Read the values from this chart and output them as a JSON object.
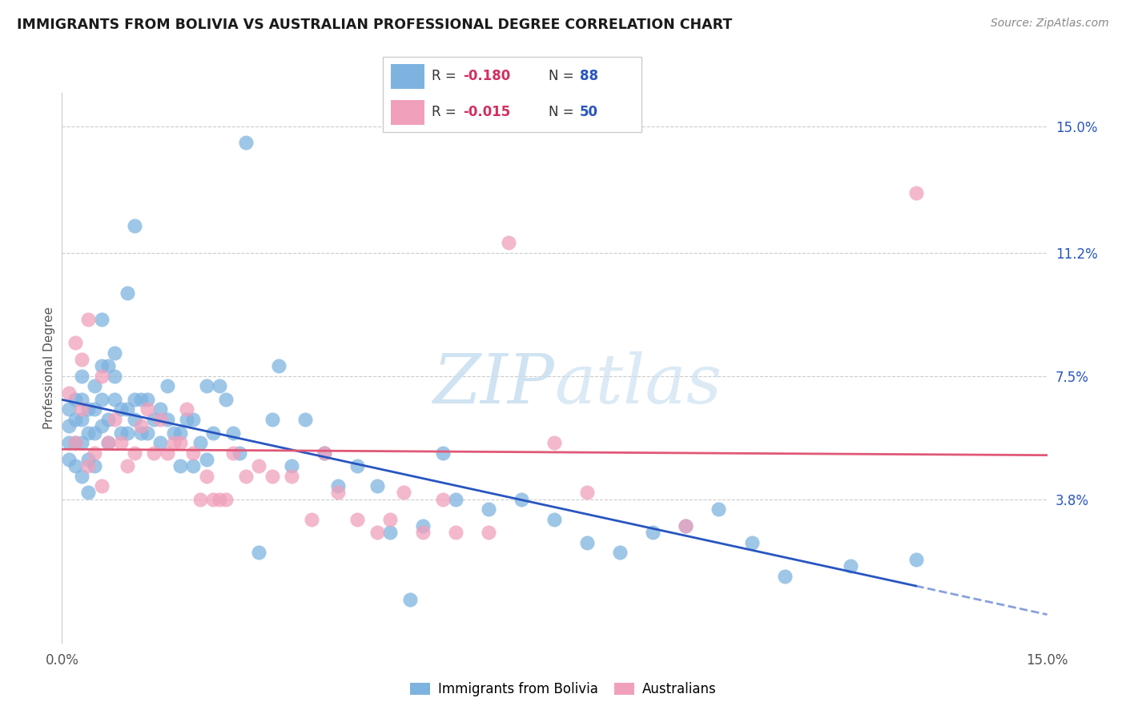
{
  "title": "IMMIGRANTS FROM BOLIVIA VS AUSTRALIAN PROFESSIONAL DEGREE CORRELATION CHART",
  "source": "Source: ZipAtlas.com",
  "ylabel": "Professional Degree",
  "right_yticks": [
    "15.0%",
    "11.2%",
    "7.5%",
    "3.8%"
  ],
  "right_ytick_vals": [
    0.15,
    0.112,
    0.075,
    0.038
  ],
  "xlim": [
    0.0,
    0.15
  ],
  "ylim": [
    -0.005,
    0.16
  ],
  "legend_label1": "Immigrants from Bolivia",
  "legend_label2": "Australians",
  "color_blue": "#7EB3E0",
  "color_pink": "#F0A0BB",
  "line_color_blue": "#2855C0",
  "line_color_pink": "#E05878",
  "watermark": "ZIPatlas",
  "bolivia_x": [
    0.001,
    0.001,
    0.001,
    0.001,
    0.002,
    0.002,
    0.002,
    0.002,
    0.003,
    0.003,
    0.003,
    0.003,
    0.003,
    0.004,
    0.004,
    0.004,
    0.004,
    0.005,
    0.005,
    0.005,
    0.005,
    0.006,
    0.006,
    0.006,
    0.006,
    0.007,
    0.007,
    0.007,
    0.008,
    0.008,
    0.008,
    0.009,
    0.009,
    0.01,
    0.01,
    0.01,
    0.011,
    0.011,
    0.011,
    0.012,
    0.012,
    0.013,
    0.013,
    0.014,
    0.015,
    0.015,
    0.016,
    0.016,
    0.017,
    0.018,
    0.018,
    0.019,
    0.02,
    0.02,
    0.021,
    0.022,
    0.022,
    0.023,
    0.024,
    0.025,
    0.026,
    0.027,
    0.028,
    0.03,
    0.032,
    0.033,
    0.035,
    0.037,
    0.04,
    0.042,
    0.045,
    0.048,
    0.05,
    0.053,
    0.055,
    0.058,
    0.06,
    0.065,
    0.07,
    0.075,
    0.08,
    0.085,
    0.09,
    0.095,
    0.1,
    0.105,
    0.11,
    0.12,
    0.13
  ],
  "bolivia_y": [
    0.05,
    0.055,
    0.06,
    0.065,
    0.048,
    0.055,
    0.062,
    0.068,
    0.045,
    0.055,
    0.062,
    0.068,
    0.075,
    0.04,
    0.05,
    0.058,
    0.065,
    0.048,
    0.058,
    0.065,
    0.072,
    0.06,
    0.068,
    0.078,
    0.092,
    0.055,
    0.062,
    0.078,
    0.068,
    0.075,
    0.082,
    0.058,
    0.065,
    0.058,
    0.065,
    0.1,
    0.062,
    0.068,
    0.12,
    0.058,
    0.068,
    0.058,
    0.068,
    0.062,
    0.055,
    0.065,
    0.062,
    0.072,
    0.058,
    0.048,
    0.058,
    0.062,
    0.048,
    0.062,
    0.055,
    0.05,
    0.072,
    0.058,
    0.072,
    0.068,
    0.058,
    0.052,
    0.145,
    0.022,
    0.062,
    0.078,
    0.048,
    0.062,
    0.052,
    0.042,
    0.048,
    0.042,
    0.028,
    0.008,
    0.03,
    0.052,
    0.038,
    0.035,
    0.038,
    0.032,
    0.025,
    0.022,
    0.028,
    0.03,
    0.035,
    0.025,
    0.015,
    0.018,
    0.02
  ],
  "australia_x": [
    0.001,
    0.002,
    0.002,
    0.003,
    0.003,
    0.004,
    0.004,
    0.005,
    0.006,
    0.006,
    0.007,
    0.008,
    0.009,
    0.01,
    0.011,
    0.012,
    0.013,
    0.014,
    0.015,
    0.016,
    0.017,
    0.018,
    0.019,
    0.02,
    0.021,
    0.022,
    0.023,
    0.024,
    0.025,
    0.026,
    0.028,
    0.03,
    0.032,
    0.035,
    0.038,
    0.04,
    0.042,
    0.045,
    0.048,
    0.05,
    0.052,
    0.055,
    0.058,
    0.06,
    0.065,
    0.068,
    0.075,
    0.08,
    0.095,
    0.13
  ],
  "australia_y": [
    0.07,
    0.055,
    0.085,
    0.065,
    0.08,
    0.048,
    0.092,
    0.052,
    0.042,
    0.075,
    0.055,
    0.062,
    0.055,
    0.048,
    0.052,
    0.06,
    0.065,
    0.052,
    0.062,
    0.052,
    0.055,
    0.055,
    0.065,
    0.052,
    0.038,
    0.045,
    0.038,
    0.038,
    0.038,
    0.052,
    0.045,
    0.048,
    0.045,
    0.045,
    0.032,
    0.052,
    0.04,
    0.032,
    0.028,
    0.032,
    0.04,
    0.028,
    0.038,
    0.028,
    0.028,
    0.115,
    0.055,
    0.04,
    0.03,
    0.13
  ]
}
